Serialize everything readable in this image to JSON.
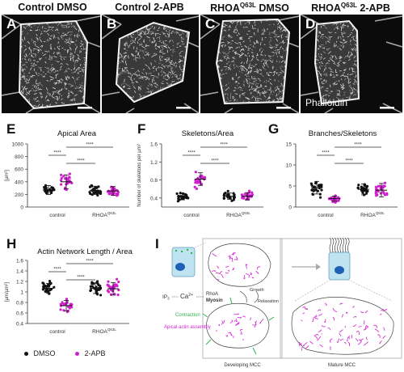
{
  "columns": [
    {
      "id": "A",
      "title": "Control DMSO"
    },
    {
      "id": "B",
      "title": "Control 2-APB"
    },
    {
      "id": "C",
      "title_main": "RHOA",
      "title_sup": "Q63L",
      "title_rest": " DMSO"
    },
    {
      "id": "D",
      "title_main": "RHOA",
      "title_sup": "Q63L",
      "title_rest": " 2-APB"
    }
  ],
  "phalloidin_label": "Phalloidin",
  "significance": "****",
  "legend": {
    "dmso": "DMSO",
    "apb": "2-APB"
  },
  "colors": {
    "dmso": "#111111",
    "apb": "#d11fd0",
    "cell_wall": "#cfcfcf"
  },
  "panel_i": {
    "label": "I",
    "ip3": "IP",
    "ip3_sub": "3",
    "ca": "Ca",
    "ca_sup": "2+",
    "rhoa": "RhoA",
    "myosin": "Myosin",
    "growth": "Growth",
    "relaxation": "Relaxation",
    "contraction": "Contraction",
    "apical_actin": "Apical actin assembly",
    "developing": "Developing MCC",
    "mature": "Mature MCC"
  },
  "chart_data": [
    {
      "panel": "E",
      "type": "scatter",
      "title": "Apical Area",
      "ylabel": "[µm²]",
      "categories": [
        "control",
        "RHOAQ63L"
      ],
      "ylim": [
        0,
        1000
      ],
      "yticks": [
        0,
        200,
        400,
        600,
        800,
        1000
      ],
      "series": [
        {
          "name": "DMSO",
          "means": [
            270,
            265
          ],
          "sd": [
            70,
            65
          ]
        },
        {
          "name": "2-APB",
          "means": [
            400,
            255
          ],
          "sd": [
            110,
            70
          ]
        }
      ]
    },
    {
      "panel": "F",
      "type": "scatter",
      "title": "Skeletons/Area",
      "ylabel": "Number of skeletons per µm²",
      "categories": [
        "control",
        "RHOAQ63L"
      ],
      "ylim": [
        0.2,
        1.6
      ],
      "yticks": [
        0.4,
        0.8,
        1.2,
        1.6
      ],
      "series": [
        {
          "name": "DMSO",
          "means": [
            0.43,
            0.44
          ],
          "sd": [
            0.07,
            0.07
          ]
        },
        {
          "name": "2-APB",
          "means": [
            0.82,
            0.44
          ],
          "sd": [
            0.14,
            0.08
          ]
        }
      ]
    },
    {
      "panel": "G",
      "type": "scatter",
      "title": "Branches/Skeletons",
      "categories": [
        "control",
        "RHOAQ63L"
      ],
      "ylim": [
        0,
        15
      ],
      "yticks": [
        0,
        5,
        10,
        15
      ],
      "series": [
        {
          "name": "DMSO",
          "means": [
            4.6,
            4.2
          ],
          "sd": [
            1.5,
            1.3
          ]
        },
        {
          "name": "2-APB",
          "means": [
            2.0,
            4.0
          ],
          "sd": [
            0.6,
            1.6
          ]
        }
      ]
    },
    {
      "panel": "H",
      "type": "scatter",
      "title": "Actin Network Length / Area",
      "ylabel": "[µm/µm²]",
      "categories": [
        "control",
        "RHOAQ63L"
      ],
      "ylim": [
        0.4,
        1.6
      ],
      "yticks": [
        0.4,
        0.6,
        0.8,
        1.0,
        1.2,
        1.4,
        1.6
      ],
      "series": [
        {
          "name": "DMSO",
          "means": [
            1.07,
            1.07
          ],
          "sd": [
            0.09,
            0.1
          ]
        },
        {
          "name": "2-APB",
          "means": [
            0.74,
            1.06
          ],
          "sd": [
            0.1,
            0.12
          ]
        }
      ]
    }
  ]
}
